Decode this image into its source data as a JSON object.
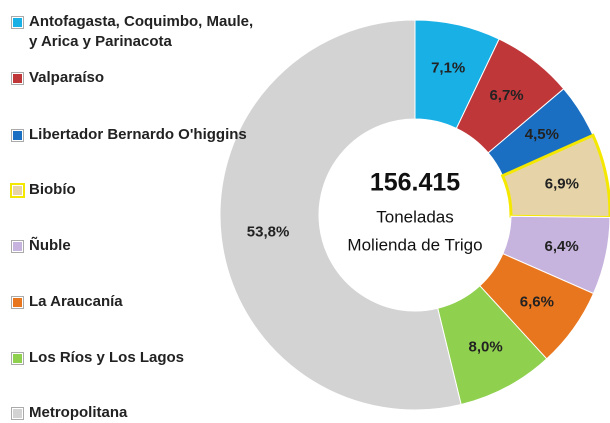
{
  "chart_data": {
    "type": "pie",
    "donut": true,
    "center_text": [
      "156.415",
      "Toneladas",
      "Molienda de Trigo"
    ],
    "categories": [
      "Antofagasta, Coquimbo, Maule, y  Arica y Parinacota",
      "Valparaíso",
      "Libertador Bernardo O'higgins",
      "Biobío",
      "Ñuble",
      "La Araucanía",
      "Los Ríos y Los Lagos",
      "Metropolitana"
    ],
    "values": [
      7.1,
      6.7,
      4.5,
      6.9,
      6.4,
      6.6,
      8.0,
      53.8
    ],
    "value_labels": [
      "7,1%",
      "6,7%",
      "4,5%",
      "6,9%",
      "6,4%",
      "6,6%",
      "8,0%",
      "53,8%"
    ],
    "colors": [
      "#19b0e6",
      "#c0373a",
      "#1b6fc2",
      "#e6d4a8",
      "#c7b4de",
      "#e8761f",
      "#8fd04e",
      "#d3d3d3"
    ],
    "legend": "left"
  }
}
